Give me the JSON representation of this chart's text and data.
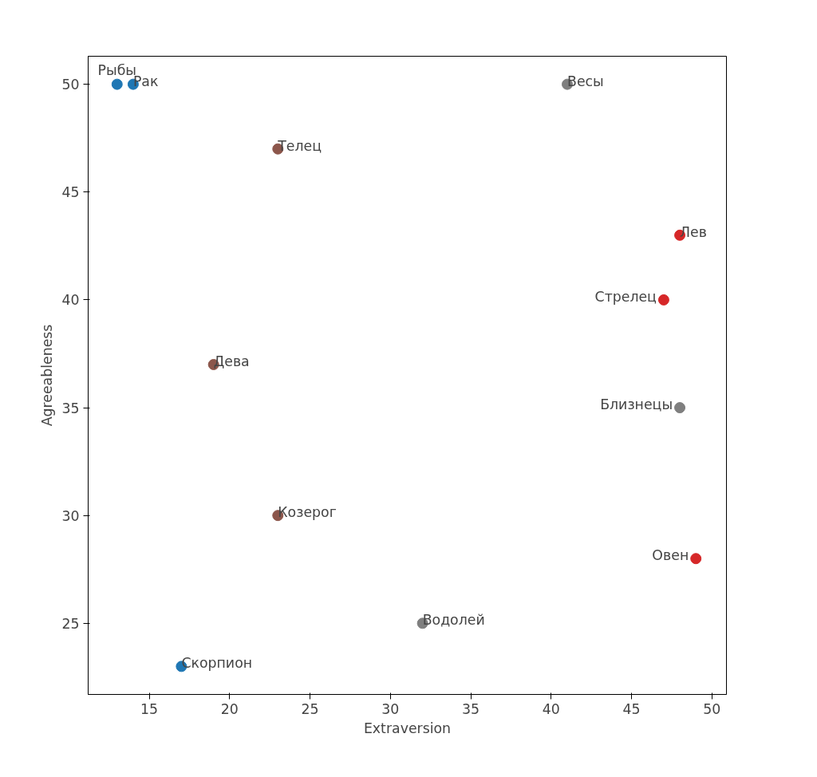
{
  "chart_data": {
    "type": "scatter",
    "xlabel": "Extraversion",
    "ylabel": "Agreeableness",
    "xlim": [
      11.2,
      50.9
    ],
    "ylim": [
      21.7,
      51.3
    ],
    "xticks": [
      15,
      20,
      25,
      30,
      35,
      40,
      45,
      50
    ],
    "yticks": [
      25,
      30,
      35,
      40,
      45,
      50
    ],
    "grid": false,
    "marker": "circle",
    "series": [
      {
        "color": "#1f77b4",
        "x": [
          13,
          14,
          17
        ],
        "values": [
          50,
          50,
          23
        ]
      },
      {
        "color": "#8c564b",
        "x": [
          23,
          19,
          23
        ],
        "values": [
          47,
          37,
          30
        ]
      },
      {
        "color": "#7f7f7f",
        "x": [
          41,
          48,
          32
        ],
        "values": [
          50,
          35,
          25
        ]
      },
      {
        "color": "#d62728",
        "x": [
          48,
          47,
          49
        ],
        "values": [
          43,
          40,
          28
        ]
      }
    ],
    "annotations": [
      {
        "text": "Рыбы",
        "x": 13,
        "y": 50
      },
      {
        "text": "Рак",
        "x": 14,
        "y": 50
      },
      {
        "text": "Скорпион",
        "x": 17,
        "y": 23
      },
      {
        "text": "Телец",
        "x": 23,
        "y": 47
      },
      {
        "text": "Дева",
        "x": 19,
        "y": 37
      },
      {
        "text": "Козерог",
        "x": 23,
        "y": 30
      },
      {
        "text": "Весы",
        "x": 41,
        "y": 50
      },
      {
        "text": "Близнецы",
        "x": 48,
        "y": 35
      },
      {
        "text": "Водолей",
        "x": 32,
        "y": 25
      },
      {
        "text": "Лев",
        "x": 48,
        "y": 43
      },
      {
        "text": "Стрелец",
        "x": 47,
        "y": 40
      },
      {
        "text": "Овен",
        "x": 49,
        "y": 28
      }
    ]
  }
}
